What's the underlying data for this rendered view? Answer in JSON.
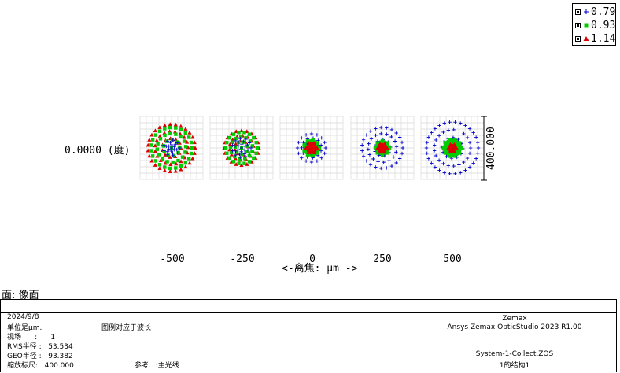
{
  "legend": {
    "items": [
      {
        "label": "0.79",
        "color": "#0000cc",
        "marker": "plus"
      },
      {
        "label": "0.93",
        "color": "#00cc00",
        "marker": "square"
      },
      {
        "label": "1.14",
        "color": "#dd0000",
        "marker": "triangle"
      }
    ]
  },
  "plot": {
    "field_label": "0.0000 (度)",
    "defocus_values": [
      "-500",
      "-250",
      "0",
      "250",
      "500"
    ],
    "axis_label": "<-离焦: μm ->",
    "scale_label": "400.000",
    "surface_label": "面: 像面"
  },
  "info": {
    "date": "2024/9/8",
    "units": "单位是μm.",
    "legend_note": "图例对应于波长",
    "field": "视场      :      1",
    "rms": "RMS半径 :   53.534",
    "geo": "GEO半径 :   93.382",
    "scale": "缩放标尺:   400.000",
    "reference": "参考   :主光线",
    "company": "Zemax",
    "product": "Ansys Zemax OpticStudio 2023 R1.00",
    "file": "System-1-Collect.ZOS",
    "config": "1的结构1"
  }
}
